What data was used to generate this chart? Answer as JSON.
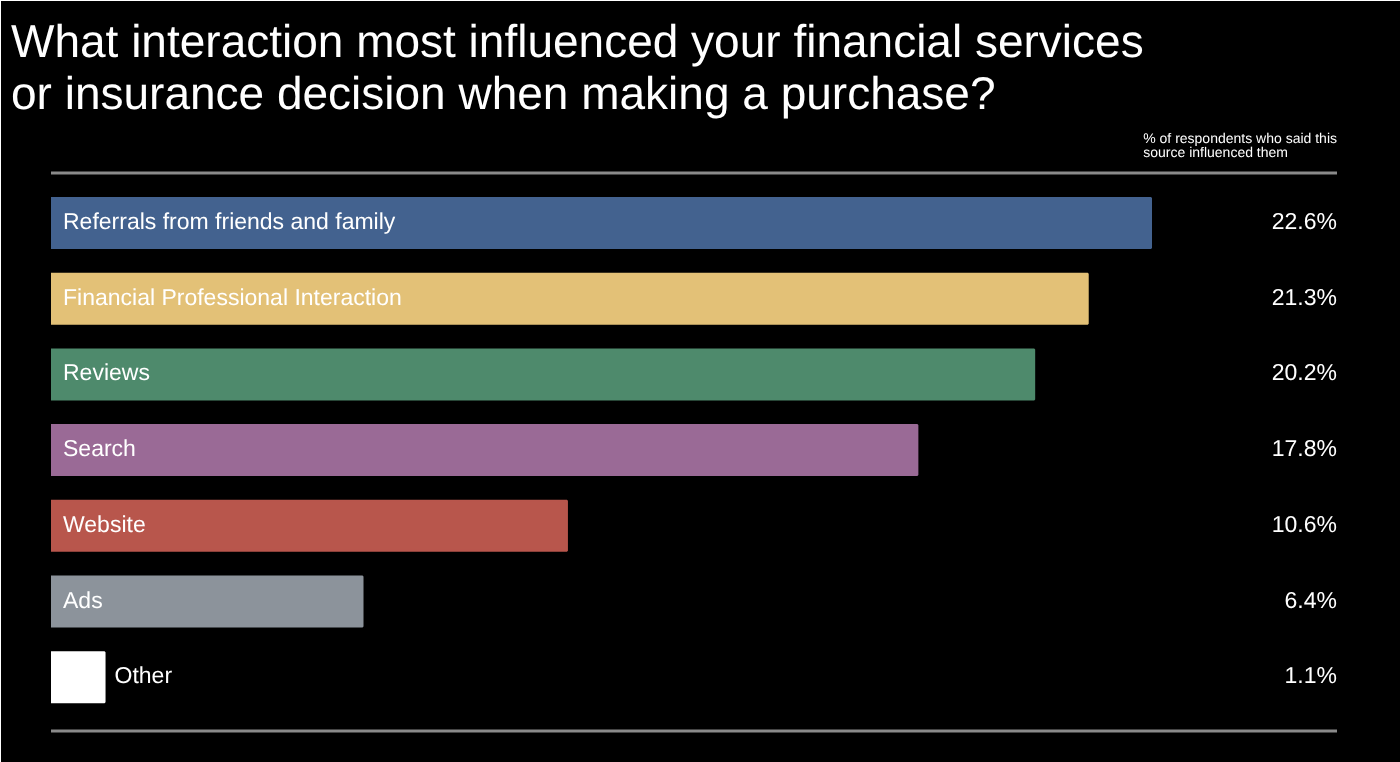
{
  "chart_data": {
    "type": "bar",
    "orientation": "horizontal",
    "title": "What interaction most influenced your financial services or insurance decision when making a purchase?",
    "categories": [
      "Referrals from friends and family",
      "Financial Professional Interaction",
      "Reviews",
      "Search",
      "Website",
      "Ads",
      "Other"
    ],
    "values": [
      22.6,
      21.3,
      20.2,
      17.8,
      10.6,
      6.4,
      1.1
    ],
    "colors": [
      "#43628f",
      "#e3c177",
      "#4e8a6c",
      "#9a6a96",
      "#b8564c",
      "#8c939b",
      "#ffffff"
    ],
    "value_labels": [
      "22.6%",
      "21.3%",
      "20.2%",
      "17.8%",
      "10.6%",
      "6.4%",
      "1.1%"
    ],
    "annotations": [
      "% of respondents who said this source influenced them"
    ],
    "tick_labels": false,
    "grid": false
  }
}
